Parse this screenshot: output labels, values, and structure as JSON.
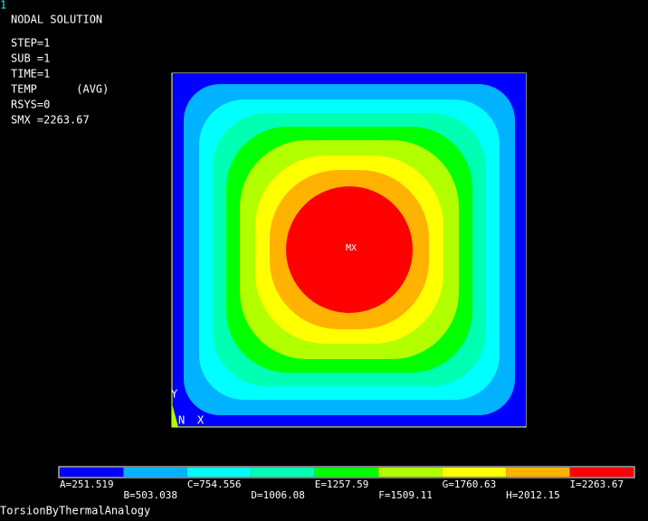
{
  "window_number": "1",
  "info": {
    "title": "NODAL SOLUTION",
    "lines": [
      "STEP=1",
      "SUB =1",
      "TIME=1",
      "TEMP      (AVG)",
      "RSYS=0",
      "SMX =2263.67"
    ]
  },
  "plot": {
    "max_label": "MX",
    "triad": {
      "y_label": "Y",
      "node_label": "N",
      "x_label": "X"
    }
  },
  "legend": [
    {
      "label": "A=251.519",
      "color": "#0000ff"
    },
    {
      "label": "B=503.038",
      "color": "#00b2ff"
    },
    {
      "label": "C=754.556",
      "color": "#00ffff"
    },
    {
      "label": "D=1006.08",
      "color": "#00ffb2"
    },
    {
      "label": "E=1257.59",
      "color": "#00ff00"
    },
    {
      "label": "F=1509.11",
      "color": "#b2ff00"
    },
    {
      "label": "G=1760.63",
      "color": "#ffff00"
    },
    {
      "label": "H=2012.15",
      "color": "#ffb200"
    },
    {
      "label": "I=2263.67",
      "color": "#ff0000"
    }
  ],
  "footer": "TorsionByThermalAnalogy"
}
